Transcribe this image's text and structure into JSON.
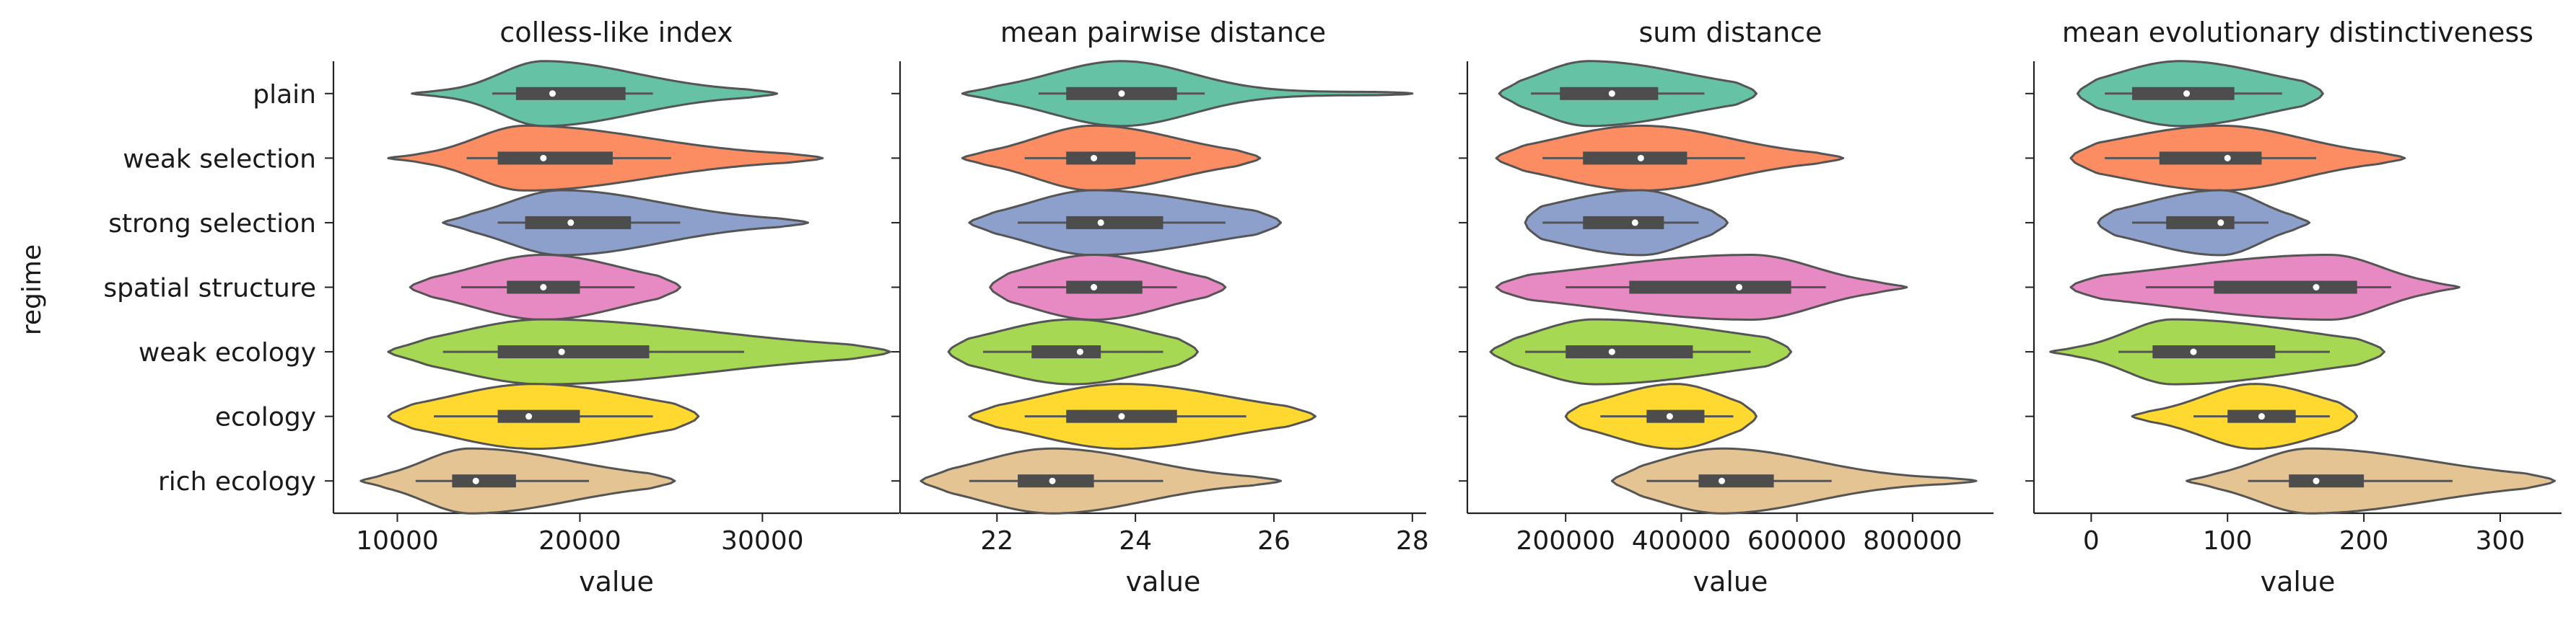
{
  "figure": {
    "ylabel": "regime",
    "regimes": [
      "plain",
      "weak selection",
      "strong selection",
      "spatial structure",
      "weak ecology",
      "ecology",
      "rich ecology"
    ],
    "colors": [
      "#66c2a5",
      "#fc8d62",
      "#8da0cb",
      "#e78ac3",
      "#a6d854",
      "#ffd92f",
      "#e5c494"
    ]
  },
  "chart_data": [
    {
      "type": "violin",
      "title": "colless-like index",
      "xlabel": "value",
      "xlim": [
        6500,
        37500
      ],
      "xticks": [
        10000,
        20000,
        30000
      ],
      "xtick_labels": [
        "10000",
        "20000",
        "30000"
      ],
      "violins": [
        {
          "regime": "plain",
          "min": 10800,
          "q1": 16500,
          "median": 18500,
          "q3": 22500,
          "max": 30800,
          "wl": 15200,
          "wh": 24000,
          "peak": 18000
        },
        {
          "regime": "weak selection",
          "min": 9500,
          "q1": 15500,
          "median": 18000,
          "q3": 21800,
          "max": 33300,
          "wl": 13800,
          "wh": 25000,
          "peak": 17000
        },
        {
          "regime": "strong selection",
          "min": 12500,
          "q1": 17000,
          "median": 19500,
          "q3": 22800,
          "max": 32500,
          "wl": 15500,
          "wh": 25500,
          "peak": 19000
        },
        {
          "regime": "spatial structure",
          "min": 10700,
          "q1": 16000,
          "median": 18000,
          "q3": 20000,
          "max": 25500,
          "wl": 13500,
          "wh": 23000,
          "peak": 18000
        },
        {
          "regime": "weak ecology",
          "min": 9500,
          "q1": 15500,
          "median": 19000,
          "q3": 23800,
          "max": 37000,
          "wl": 12500,
          "wh": 29000,
          "peak": 18000
        },
        {
          "regime": "ecology",
          "min": 9500,
          "q1": 15500,
          "median": 17200,
          "q3": 20000,
          "max": 26500,
          "wl": 12000,
          "wh": 24000,
          "peak": 17500
        },
        {
          "regime": "rich ecology",
          "min": 8000,
          "q1": 13000,
          "median": 14300,
          "q3": 16500,
          "max": 25200,
          "wl": 11000,
          "wh": 20500,
          "peak": 14000
        }
      ]
    },
    {
      "type": "violin",
      "title": "mean pairwise distance",
      "xlabel": "value",
      "xlim": [
        20.6,
        28.2
      ],
      "xticks": [
        22,
        24,
        26,
        28
      ],
      "xtick_labels": [
        "22",
        "24",
        "26",
        "28"
      ],
      "violins": [
        {
          "regime": "plain",
          "min": 21.5,
          "q1": 23.0,
          "median": 23.8,
          "q3": 24.6,
          "max": 28.0,
          "wl": 22.6,
          "wh": 25.0,
          "peak": 23.8
        },
        {
          "regime": "weak selection",
          "min": 21.5,
          "q1": 23.0,
          "median": 23.4,
          "q3": 24.0,
          "max": 25.8,
          "wl": 22.4,
          "wh": 24.8,
          "peak": 23.4
        },
        {
          "regime": "strong selection",
          "min": 21.6,
          "q1": 23.0,
          "median": 23.5,
          "q3": 24.4,
          "max": 26.1,
          "wl": 22.3,
          "wh": 25.3,
          "peak": 23.4
        },
        {
          "regime": "spatial structure",
          "min": 21.9,
          "q1": 23.0,
          "median": 23.4,
          "q3": 24.1,
          "max": 25.3,
          "wl": 22.3,
          "wh": 24.6,
          "peak": 23.4
        },
        {
          "regime": "weak ecology",
          "min": 21.3,
          "q1": 22.5,
          "median": 23.2,
          "q3": 23.5,
          "max": 24.9,
          "wl": 21.8,
          "wh": 24.4,
          "peak": 23.1
        },
        {
          "regime": "ecology",
          "min": 21.6,
          "q1": 23.0,
          "median": 23.8,
          "q3": 24.6,
          "max": 26.6,
          "wl": 22.4,
          "wh": 25.6,
          "peak": 23.8
        },
        {
          "regime": "rich ecology",
          "min": 20.9,
          "q1": 22.3,
          "median": 22.8,
          "q3": 23.4,
          "max": 26.1,
          "wl": 21.6,
          "wh": 24.4,
          "peak": 22.8
        }
      ]
    },
    {
      "type": "violin",
      "title": "sum distance",
      "xlabel": "value",
      "xlim": [
        30000,
        940000
      ],
      "xticks": [
        200000,
        400000,
        600000,
        800000
      ],
      "xtick_labels": [
        "200000",
        "400000",
        "600000",
        "800000"
      ],
      "violins": [
        {
          "regime": "plain",
          "min": 85000,
          "q1": 190000,
          "median": 280000,
          "q3": 360000,
          "max": 530000,
          "wl": 140000,
          "wh": 440000,
          "peak": 240000
        },
        {
          "regime": "weak selection",
          "min": 80000,
          "q1": 230000,
          "median": 330000,
          "q3": 410000,
          "max": 680000,
          "wl": 160000,
          "wh": 510000,
          "peak": 330000
        },
        {
          "regime": "strong selection",
          "min": 130000,
          "q1": 230000,
          "median": 320000,
          "q3": 370000,
          "max": 480000,
          "wl": 160000,
          "wh": 430000,
          "peak": 330000
        },
        {
          "regime": "spatial structure",
          "min": 80000,
          "q1": 310000,
          "median": 500000,
          "q3": 590000,
          "max": 790000,
          "wl": 200000,
          "wh": 650000,
          "peak": 520000
        },
        {
          "regime": "weak ecology",
          "min": 70000,
          "q1": 200000,
          "median": 280000,
          "q3": 420000,
          "max": 590000,
          "wl": 130000,
          "wh": 520000,
          "peak": 250000
        },
        {
          "regime": "ecology",
          "min": 200000,
          "q1": 340000,
          "median": 380000,
          "q3": 440000,
          "max": 530000,
          "wl": 260000,
          "wh": 490000,
          "peak": 390000
        },
        {
          "regime": "rich ecology",
          "min": 280000,
          "q1": 430000,
          "median": 470000,
          "q3": 560000,
          "max": 910000,
          "wl": 340000,
          "wh": 660000,
          "peak": 470000
        }
      ]
    },
    {
      "type": "violin",
      "title": "mean evolutionary distinctiveness",
      "xlabel": "value",
      "xlim": [
        -42,
        345
      ],
      "xticks": [
        0,
        100,
        200,
        300
      ],
      "xtick_labels": [
        "0",
        "100",
        "200",
        "300"
      ],
      "violins": [
        {
          "regime": "plain",
          "min": -10,
          "q1": 30,
          "median": 70,
          "q3": 105,
          "max": 170,
          "wl": 10,
          "wh": 140,
          "peak": 65
        },
        {
          "regime": "weak selection",
          "min": -15,
          "q1": 50,
          "median": 100,
          "q3": 125,
          "max": 230,
          "wl": 10,
          "wh": 165,
          "peak": 95
        },
        {
          "regime": "strong selection",
          "min": 5,
          "q1": 55,
          "median": 95,
          "q3": 105,
          "max": 160,
          "wl": 30,
          "wh": 130,
          "peak": 95
        },
        {
          "regime": "spatial structure",
          "min": -15,
          "q1": 90,
          "median": 165,
          "q3": 195,
          "max": 270,
          "wl": 40,
          "wh": 220,
          "peak": 175
        },
        {
          "regime": "weak ecology",
          "min": -30,
          "q1": 45,
          "median": 75,
          "q3": 135,
          "max": 215,
          "wl": 20,
          "wh": 175,
          "peak": 60
        },
        {
          "regime": "ecology",
          "min": 30,
          "q1": 100,
          "median": 125,
          "q3": 150,
          "max": 195,
          "wl": 75,
          "wh": 175,
          "peak": 120
        },
        {
          "regime": "rich ecology",
          "min": 70,
          "q1": 145,
          "median": 165,
          "q3": 200,
          "max": 340,
          "wl": 115,
          "wh": 265,
          "peak": 160
        }
      ]
    }
  ]
}
